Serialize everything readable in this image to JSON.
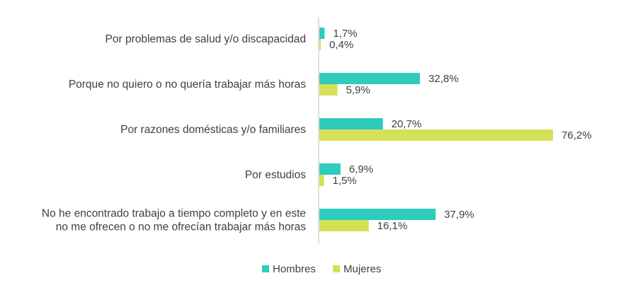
{
  "chart_data": {
    "type": "bar",
    "orientation": "horizontal",
    "categories": [
      [
        "Por problemas de salud y/o discapacidad"
      ],
      [
        "Porque no quiero o no quería trabajar más horas"
      ],
      [
        "Por razones domésticas y/o familiares"
      ],
      [
        "Por estudios"
      ],
      [
        "No he encontrado trabajo a tiempo completo y en este",
        "no me ofrecen o no me ofrecían trabajar más horas"
      ]
    ],
    "series": [
      {
        "name": "Hombres",
        "color": "#2ECCBD",
        "values": [
          1.7,
          32.8,
          20.7,
          6.9,
          37.9
        ],
        "labels": [
          "1,7%",
          "32,8%",
          "20,7%",
          "6,9%",
          "37,9%"
        ]
      },
      {
        "name": "Mujeres",
        "color": "#D4E157",
        "values": [
          0.4,
          5.9,
          76.2,
          1.5,
          16.1
        ],
        "labels": [
          "0,4%",
          "5,9%",
          "76,2%",
          "1,5%",
          "16,1%"
        ]
      }
    ],
    "xlim": [
      0,
      100
    ],
    "legend": "bottom-center",
    "grid": false
  }
}
